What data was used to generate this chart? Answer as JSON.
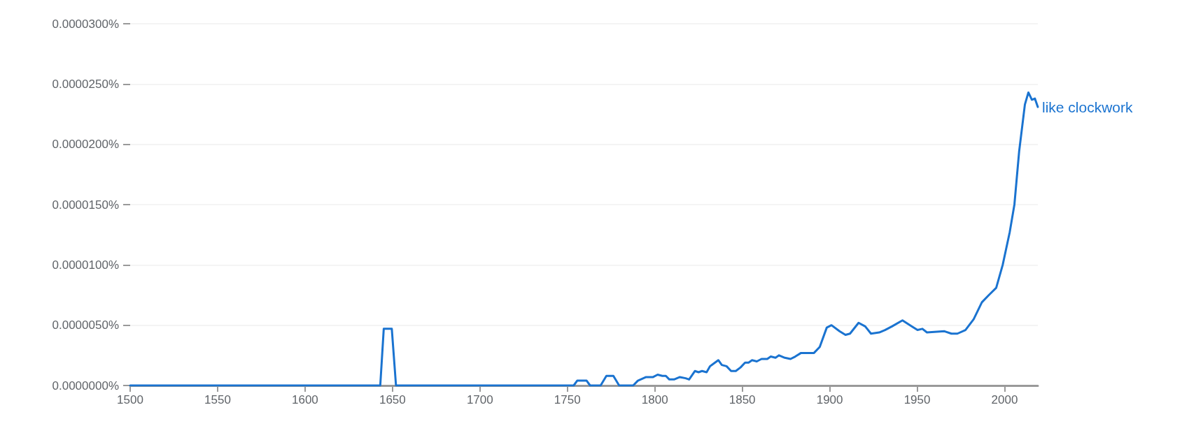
{
  "chart_data": {
    "type": "line",
    "x": [
      1500,
      1643,
      1645,
      1649.6,
      1652,
      1753.6,
      1755.6,
      1761,
      1763,
      1769,
      1772.3,
      1776.3,
      1779.6,
      1787.6,
      1790.3,
      1795,
      1799,
      1801.6,
      1804.3,
      1806.3,
      1808.3,
      1811,
      1814.3,
      1817.6,
      1819.6,
      1822.9,
      1825,
      1827,
      1829.6,
      1831.6,
      1836.3,
      1838.3,
      1841,
      1843.6,
      1846.3,
      1849,
      1851.6,
      1853.6,
      1855.6,
      1858.3,
      1861,
      1864.3,
      1866.3,
      1869,
      1871,
      1874.3,
      1877.6,
      1880.3,
      1883.6,
      1885.6,
      1891,
      1894.3,
      1898.3,
      1901,
      1905.6,
      1909,
      1911.6,
      1916.5,
      1920.3,
      1923.6,
      1928.3,
      1931.6,
      1935.6,
      1941.6,
      1947,
      1950.2,
      1953,
      1955.6,
      1965.6,
      1969.6,
      1973,
      1977.6,
      1982.3,
      1987,
      1991,
      1995.2,
      1998.9,
      2002.9,
      2005.6,
      2008.3,
      2011.6,
      2013.6,
      2015.6,
      2017.3,
      2019
    ],
    "series": [
      {
        "name": "like clockwork",
        "color": "#1a73d0",
        "values": [
          0,
          0,
          4.7e-06,
          4.7e-06,
          0,
          0,
          4e-07,
          4e-07,
          0,
          0,
          8e-07,
          8e-07,
          0,
          0,
          4e-07,
          7e-07,
          7e-07,
          9e-07,
          8e-07,
          8e-07,
          5e-07,
          5e-07,
          7e-07,
          6e-07,
          5e-07,
          1.2e-06,
          1.1e-06,
          1.2e-06,
          1.1e-06,
          1.6e-06,
          2.1e-06,
          1.7e-06,
          1.6e-06,
          1.2e-06,
          1.2e-06,
          1.5e-06,
          1.9e-06,
          1.9e-06,
          2.1e-06,
          2e-06,
          2.2e-06,
          2.2e-06,
          2.4e-06,
          2.3e-06,
          2.5e-06,
          2.3e-06,
          2.2e-06,
          2.4e-06,
          2.7e-06,
          2.7e-06,
          2.7e-06,
          3.2e-06,
          4.8e-06,
          5e-06,
          4.5e-06,
          4.2e-06,
          4.3e-06,
          5.2e-06,
          4.9e-06,
          4.3e-06,
          4.4e-06,
          4.6e-06,
          4.9e-06,
          5.4e-06,
          4.9e-06,
          4.6e-06,
          4.7e-06,
          4.4e-06,
          4.5e-06,
          4.3e-06,
          4.3e-06,
          4.6e-06,
          5.5e-06,
          6.9e-06,
          7.5e-06,
          8.1e-06,
          1e-05,
          1.27e-05,
          1.5e-05,
          1.94e-05,
          2.33e-05,
          2.43e-05,
          2.37e-05,
          2.38e-05,
          2.31e-05
        ]
      }
    ],
    "xlim": [
      1500,
      2019
    ],
    "xticks": [
      1500,
      1550,
      1600,
      1650,
      1700,
      1750,
      1800,
      1850,
      1900,
      1950,
      2000
    ],
    "ylim": [
      0,
      3e-05
    ],
    "yticks": [
      {
        "value": 0,
        "label": "0.0000000%"
      },
      {
        "value": 5e-06,
        "label": "0.0000050%"
      },
      {
        "value": 1e-05,
        "label": "0.0000100%"
      },
      {
        "value": 1.5e-05,
        "label": "0.0000150%"
      },
      {
        "value": 2e-05,
        "label": "0.0000200%"
      },
      {
        "value": 2.5e-05,
        "label": "0.0000250%"
      },
      {
        "value": 3e-05,
        "label": "0.0000300%"
      }
    ],
    "grid": "y",
    "legend": false,
    "marker": "none",
    "line_style": "solid"
  }
}
